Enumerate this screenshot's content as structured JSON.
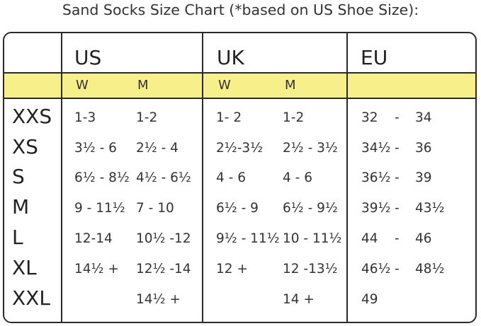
{
  "title": "Sand Socks Size Chart (*based on US Shoe Size):",
  "headers": {
    "groups": [
      "US",
      "UK",
      "EU"
    ],
    "sub": {
      "us_w": "W",
      "us_m": "M",
      "uk_w": "W",
      "uk_m": "M"
    }
  },
  "colors": {
    "band": "#f7f08a",
    "border": "#2a2a2a"
  },
  "rows": [
    {
      "size": "XXS",
      "us_w": "1-3",
      "us_m": "1-2",
      "uk_w": "1- 2",
      "uk_m": "1-2",
      "eu_a": "32",
      "eu_dash": "-",
      "eu_b": "34"
    },
    {
      "size": "XS",
      "us_w": "3½ - 6",
      "us_m": "2½ - 4",
      "uk_w": "2½-3½",
      "uk_m": "2½ - 3½",
      "eu_a": "34½",
      "eu_dash": "-",
      "eu_b": "36"
    },
    {
      "size": "S",
      "us_w": "6½ - 8½",
      "us_m": "4½ - 6½",
      "uk_w": "4 - 6",
      "uk_m": "4 - 6",
      "eu_a": "36½",
      "eu_dash": "-",
      "eu_b": "39"
    },
    {
      "size": "M",
      "us_w": "9 - 11½",
      "us_m": "7 - 10",
      "uk_w": "6½ - 9",
      "uk_m": "6½ - 9½",
      "eu_a": "39½",
      "eu_dash": "-",
      "eu_b": "43½"
    },
    {
      "size": "L",
      "us_w": "12-14",
      "us_m": "10½ -12",
      "uk_w": "9½ - 11½",
      "uk_m": "10 - 11½",
      "eu_a": "44",
      "eu_dash": "-",
      "eu_b": "46"
    },
    {
      "size": "XL",
      "us_w": "14½ +",
      "us_m": "12½ -14",
      "uk_w": "12 +",
      "uk_m": "12 -13½",
      "eu_a": "46½",
      "eu_dash": "-",
      "eu_b": "48½"
    },
    {
      "size": "XXL",
      "us_w": "",
      "us_m": "14½ +",
      "uk_w": "",
      "uk_m": "14 +",
      "eu_a": "49",
      "eu_dash": "",
      "eu_b": ""
    }
  ]
}
